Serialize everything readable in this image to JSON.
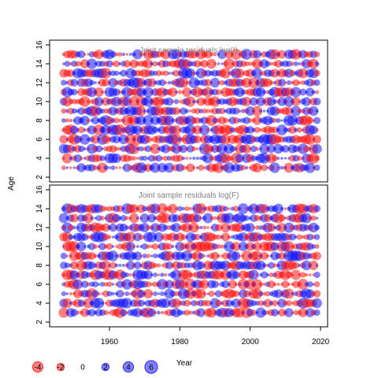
{
  "chart_data": {
    "type": "scatter",
    "encoding": "bubble",
    "ylabel": "Age",
    "xlabel": "Year",
    "xlim": [
      1943,
      2022
    ],
    "x_ticks": [
      "1960",
      "1980",
      "2000",
      "2020"
    ],
    "year_range": [
      1947,
      2019
    ],
    "colors": {
      "negative": "#ff0000",
      "positive": "#0000ff"
    },
    "legend": {
      "placement": "bottom-left",
      "items": [
        {
          "label": "-4",
          "value": -4
        },
        {
          "label": "-2",
          "value": -2
        },
        {
          "label": "0",
          "value": 0
        },
        {
          "label": "2",
          "value": 2
        },
        {
          "label": "4",
          "value": 4
        },
        {
          "label": "6",
          "value": 6
        }
      ]
    },
    "panels": [
      {
        "title": "Joint sample residuals log(I)",
        "ylim": [
          1.5,
          16.5
        ],
        "y_ticks": [
          "2",
          "4",
          "6",
          "8",
          "10",
          "12",
          "14",
          "16"
        ],
        "ages": [
          3,
          15
        ],
        "seed": 11
      },
      {
        "title": "Joint sample residuals log(F)",
        "ylim": [
          1.5,
          16.5
        ],
        "y_ticks": [
          "2",
          "4",
          "6",
          "8",
          "10",
          "12",
          "14",
          "16"
        ],
        "ages": [
          3,
          14
        ],
        "seed": 29
      }
    ]
  }
}
